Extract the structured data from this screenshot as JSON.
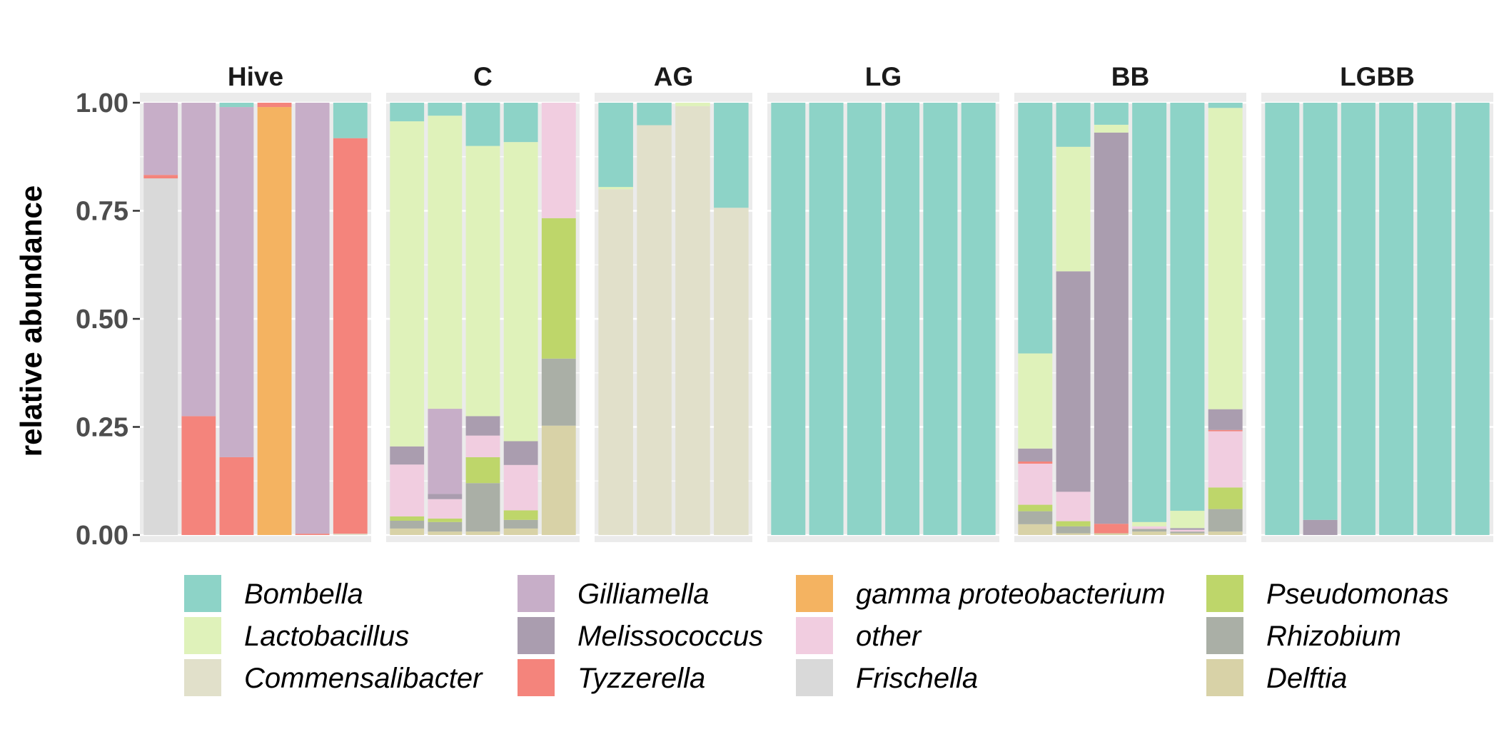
{
  "chart_data": {
    "type": "bar",
    "stacked": true,
    "ylabel": "relative abundance",
    "xlabel": "",
    "ylim": [
      0,
      1
    ],
    "yticks": [
      "0.00",
      "0.25",
      "0.50",
      "0.75",
      "1.00"
    ],
    "legend_position": "bottom",
    "grid": true,
    "taxa": [
      "Bombella",
      "Lactobacillus",
      "Commensalibacter",
      "Gilliamella",
      "Melissococcus",
      "Tyzzerella",
      "gamma proteobacterium",
      "other",
      "Frischella",
      "Pseudomonas",
      "Rhizobium",
      "Delftia"
    ],
    "colors": {
      "Bombella": "#8DD3C7",
      "Lactobacillus": "#DFF2BA",
      "Commensalibacter": "#E1E0CA",
      "Gilliamella": "#C7AEC8",
      "Melissococcus": "#AA9DAF",
      "Tyzzerella": "#F4847C",
      "gamma proteobacterium": "#F4B361",
      "other": "#F1CDE0",
      "Frischella": "#D9D9D9",
      "Pseudomonas": "#BED66A",
      "Rhizobium": "#AAAFA6",
      "Delftia": "#D8D2A7"
    },
    "legend_order": [
      [
        "Bombella",
        "Lactobacillus",
        "Commensalibacter"
      ],
      [
        "Gilliamella",
        "Melissococcus",
        "Tyzzerella"
      ],
      [
        "gamma proteobacterium",
        "other",
        "Frischella"
      ],
      [
        "Pseudomonas",
        "Rhizobium",
        "Delftia"
      ]
    ],
    "panels": [
      {
        "name": "Hive",
        "bars": [
          {
            "Frischella": 0.825,
            "Tyzzerella": 0.008,
            "Gilliamella": 0.167
          },
          {
            "Tyzzerella": 0.275,
            "Gilliamella": 0.725
          },
          {
            "Tyzzerella": 0.18,
            "Gilliamella": 0.81,
            "Bombella": 0.01
          },
          {
            "gamma proteobacterium": 0.99,
            "Tyzzerella": 0.01
          },
          {
            "Tyzzerella": 0.003,
            "Gilliamella": 0.997
          },
          {
            "Commensalibacter": 0.003,
            "Tyzzerella": 0.915,
            "Bombella": 0.082
          }
        ]
      },
      {
        "name": "C",
        "bars": [
          {
            "Delftia": 0.015,
            "Rhizobium": 0.018,
            "Pseudomonas": 0.01,
            "other": 0.12,
            "Melissococcus": 0.042,
            "Lactobacillus": 0.752,
            "Bombella": 0.043
          },
          {
            "Delftia": 0.008,
            "Rhizobium": 0.022,
            "Pseudomonas": 0.008,
            "other": 0.045,
            "Melissococcus": 0.012,
            "Gilliamella": 0.197,
            "Lactobacillus": 0.678,
            "Bombella": 0.03
          },
          {
            "Delftia": 0.008,
            "Rhizobium": 0.112,
            "Pseudomonas": 0.06,
            "other": 0.05,
            "Melissococcus": 0.045,
            "Lactobacillus": 0.625,
            "Bombella": 0.1
          },
          {
            "Delftia": 0.015,
            "Rhizobium": 0.02,
            "Pseudomonas": 0.022,
            "other": 0.105,
            "Melissococcus": 0.055,
            "Lactobacillus": 0.692,
            "Bombella": 0.091
          },
          {
            "Delftia": 0.253,
            "Rhizobium": 0.155,
            "Pseudomonas": 0.325,
            "other": 0.267
          }
        ]
      },
      {
        "name": "AG",
        "bars": [
          {
            "Commensalibacter": 0.8,
            "Lactobacillus": 0.005,
            "Bombella": 0.195
          },
          {
            "Commensalibacter": 0.948,
            "Bombella": 0.052
          },
          {
            "Commensalibacter": 0.992,
            "Lactobacillus": 0.008
          },
          {
            "Commensalibacter": 0.757,
            "Bombella": 0.243
          }
        ]
      },
      {
        "name": "LG",
        "bars": [
          {
            "Bombella": 1.0
          },
          {
            "Bombella": 1.0
          },
          {
            "Bombella": 1.0
          },
          {
            "Bombella": 1.0
          },
          {
            "Bombella": 1.0
          },
          {
            "Bombella": 1.0
          }
        ]
      },
      {
        "name": "BB",
        "bars": [
          {
            "Delftia": 0.025,
            "Rhizobium": 0.03,
            "Pseudomonas": 0.015,
            "other": 0.095,
            "Tyzzerella": 0.005,
            "Melissococcus": 0.03,
            "Lactobacillus": 0.22,
            "Bombella": 0.58
          },
          {
            "Delftia": 0.004,
            "Rhizobium": 0.016,
            "Pseudomonas": 0.012,
            "other": 0.068,
            "Melissococcus": 0.51,
            "Lactobacillus": 0.288,
            "Bombella": 0.102
          },
          {
            "Delftia": 0.004,
            "Tyzzerella": 0.022,
            "Melissococcus": 0.905,
            "Lactobacillus": 0.018,
            "Bombella": 0.051
          },
          {
            "Delftia": 0.008,
            "Rhizobium": 0.006,
            "other": 0.006,
            "Lactobacillus": 0.01,
            "Bombella": 0.97
          },
          {
            "Delftia": 0.004,
            "Rhizobium": 0.004,
            "other": 0.004,
            "Melissococcus": 0.004,
            "Lactobacillus": 0.04,
            "Bombella": 0.944
          },
          {
            "Delftia": 0.008,
            "Rhizobium": 0.052,
            "Pseudomonas": 0.05,
            "other": 0.13,
            "Tyzzerella": 0.003,
            "Melissococcus": 0.048,
            "Lactobacillus": 0.697,
            "Bombella": 0.012
          }
        ]
      },
      {
        "name": "LGBB",
        "bars": [
          {
            "Bombella": 1.0
          },
          {
            "Melissococcus": 0.035,
            "Bombella": 0.965
          },
          {
            "Bombella": 1.0
          },
          {
            "Bombella": 1.0
          },
          {
            "Bombella": 1.0
          },
          {
            "Bombella": 1.0
          }
        ]
      }
    ]
  }
}
